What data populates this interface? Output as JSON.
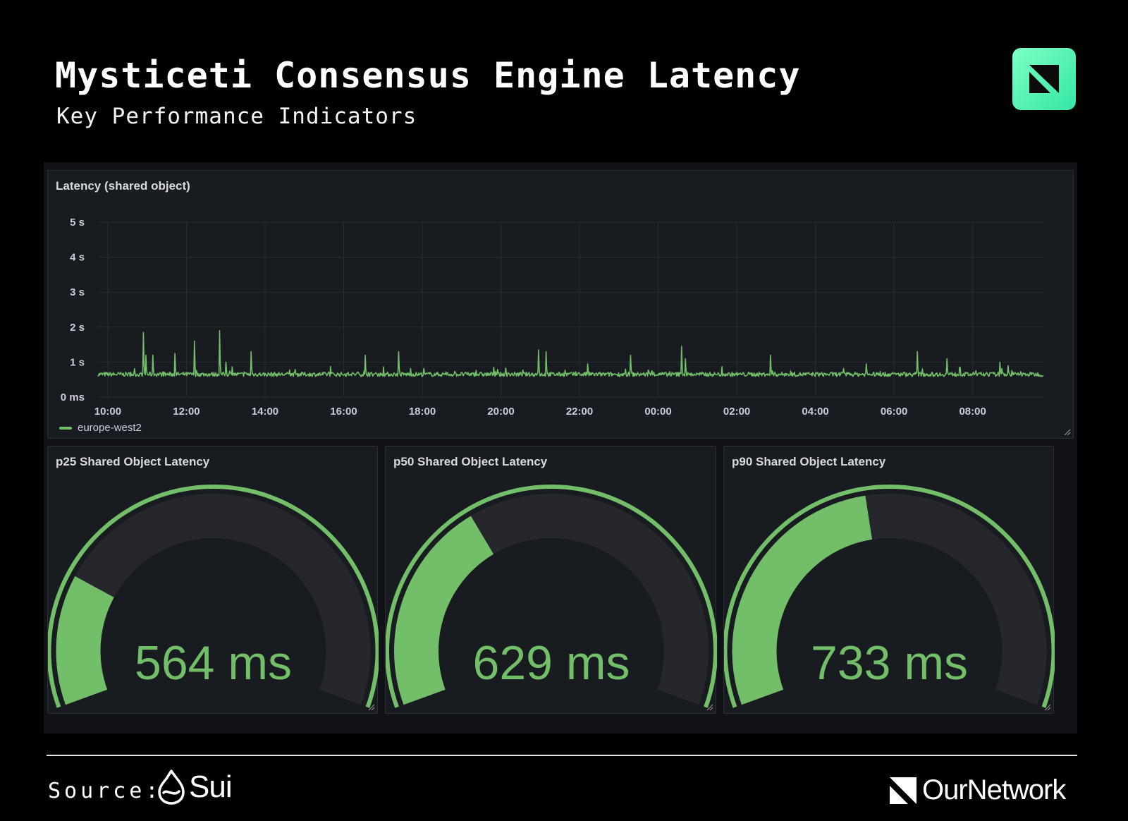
{
  "header": {
    "title": "Mysticeti Consensus Engine Latency",
    "subtitle": "Key Performance Indicators",
    "logo_icon": "ournetwork-badge-icon",
    "accent": "#5ef0b4"
  },
  "chart_data": [
    {
      "type": "line",
      "title": "Latency (shared object)",
      "ylabel": "",
      "xlabel": "",
      "y_ticks": [
        "0 ms",
        "1 s",
        "2 s",
        "3 s",
        "4 s",
        "5 s"
      ],
      "ylim": [
        0,
        5
      ],
      "x_ticks": [
        "10:00",
        "12:00",
        "14:00",
        "16:00",
        "18:00",
        "20:00",
        "22:00",
        "00:00",
        "02:00",
        "04:00",
        "06:00",
        "08:00"
      ],
      "x_range_hours": [
        -0.25,
        23.8
      ],
      "baseline_seconds": 0.65,
      "spikes": [
        {
          "t": 0.9,
          "v": 1.85
        },
        {
          "t": 0.97,
          "v": 1.2
        },
        {
          "t": 1.15,
          "v": 1.2
        },
        {
          "t": 1.7,
          "v": 1.25
        },
        {
          "t": 2.2,
          "v": 1.6
        },
        {
          "t": 2.85,
          "v": 1.9
        },
        {
          "t": 3.0,
          "v": 1.0
        },
        {
          "t": 3.65,
          "v": 1.3
        },
        {
          "t": 6.55,
          "v": 1.2
        },
        {
          "t": 7.4,
          "v": 1.3
        },
        {
          "t": 10.95,
          "v": 1.35
        },
        {
          "t": 11.15,
          "v": 1.3
        },
        {
          "t": 12.2,
          "v": 0.95
        },
        {
          "t": 13.3,
          "v": 1.2
        },
        {
          "t": 14.6,
          "v": 1.45
        },
        {
          "t": 14.7,
          "v": 1.1
        },
        {
          "t": 16.85,
          "v": 1.2
        },
        {
          "t": 19.3,
          "v": 0.95
        },
        {
          "t": 20.6,
          "v": 1.3
        },
        {
          "t": 21.35,
          "v": 1.1
        },
        {
          "t": 22.7,
          "v": 1.0
        },
        {
          "t": 22.9,
          "v": 0.9
        }
      ],
      "series": [
        {
          "name": "europe-west2",
          "color": "#73bf69"
        }
      ],
      "legend": "bottom-left",
      "grid": true
    },
    {
      "type": "gauge",
      "title": "p25 Shared Object Latency",
      "value_label": "564 ms",
      "value": 564,
      "fill_fraction": 0.22,
      "color": "#73bf69"
    },
    {
      "type": "gauge",
      "title": "p50 Shared Object Latency",
      "value_label": "629 ms",
      "value": 629,
      "fill_fraction": 0.36,
      "color": "#73bf69"
    },
    {
      "type": "gauge",
      "title": "p90 Shared Object Latency",
      "value_label": "733 ms",
      "value": 733,
      "fill_fraction": 0.46,
      "color": "#73bf69"
    }
  ],
  "footer": {
    "source_label": "Source:",
    "source_brand": "Sui",
    "source_icon": "sui-droplet-icon",
    "publisher": "OurNetwork",
    "publisher_icon": "ournetwork-mark-icon"
  }
}
